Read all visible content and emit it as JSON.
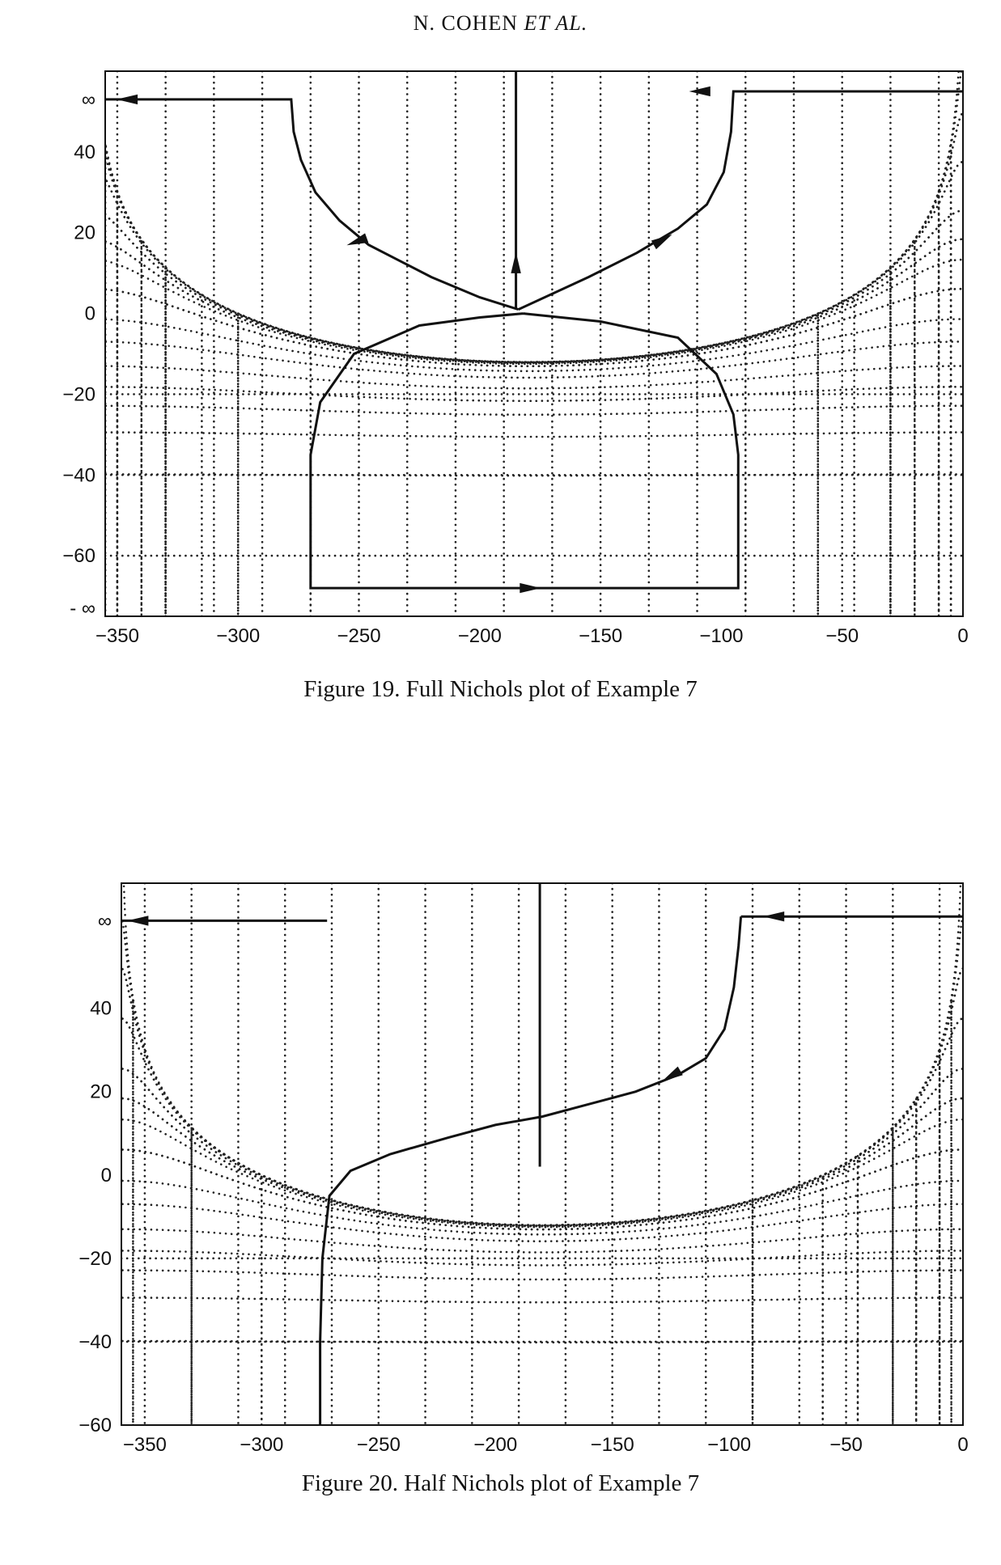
{
  "page_header": {
    "name": "N. COHEN",
    "etal": "ET AL."
  },
  "chart_data": [
    {
      "type": "line",
      "caption": "Figure 19.  Full Nichols plot of Example 7",
      "x_ticks": [
        "−350",
        "−300",
        "−250",
        "−200",
        "−150",
        "−100",
        "−50",
        "0"
      ],
      "y_ticks": [
        "∞",
        "40",
        "20",
        "0",
        "−20",
        "−40",
        "−60",
        "- ∞"
      ],
      "xlim": [
        -355,
        0
      ],
      "ylim": [
        -75,
        60
      ],
      "grid": "Nichols chart (dotted M and N contours)",
      "curve": {
        "upper_left": [
          [
            -355,
            53
          ],
          [
            -278,
            53
          ],
          [
            -277,
            45
          ],
          [
            -274,
            38
          ],
          [
            -268,
            30
          ],
          [
            -258,
            23
          ],
          [
            -246,
            17
          ],
          [
            -233,
            13
          ],
          [
            -220,
            9
          ],
          [
            -200,
            4
          ],
          [
            -184,
            1
          ]
        ],
        "upper_right": [
          [
            0,
            55
          ],
          [
            -95,
            55
          ],
          [
            -96,
            45
          ],
          [
            -99,
            35
          ],
          [
            -106,
            27
          ],
          [
            -118,
            21
          ],
          [
            -135,
            15
          ],
          [
            -155,
            9
          ],
          [
            -184,
            1
          ]
        ],
        "center_vertical": [
          [
            -185,
            60
          ],
          [
            -185,
            1
          ]
        ],
        "lower": [
          [
            -182,
            0
          ],
          [
            -150,
            -2
          ],
          [
            -118,
            -6
          ],
          [
            -102,
            -15
          ],
          [
            -95,
            -25
          ],
          [
            -93,
            -35
          ],
          [
            -93,
            -50
          ],
          [
            -93,
            -68
          ],
          [
            -180,
            -68
          ],
          [
            -270,
            -68
          ],
          [
            -270,
            -50
          ],
          [
            -270,
            -35
          ],
          [
            -266,
            -22
          ],
          [
            -252,
            -10
          ],
          [
            -225,
            -3
          ],
          [
            -200,
            -1
          ],
          [
            -182,
            0
          ]
        ]
      }
    },
    {
      "type": "line",
      "caption": "Figure 20.  Half Nichols plot of Example 7",
      "x_ticks": [
        "−350",
        "−300",
        "−250",
        "−200",
        "−150",
        "−100",
        "−50",
        "0"
      ],
      "y_ticks": [
        "∞",
        "40",
        "20",
        "0",
        "−20",
        "−40",
        "−60"
      ],
      "xlim": [
        -360,
        0
      ],
      "ylim": [
        -60,
        70
      ],
      "grid": "Nichols chart (dotted M and N contours)",
      "curve": {
        "top_left": [
          [
            -360,
            61
          ],
          [
            -272,
            61
          ]
        ],
        "main": [
          [
            -275,
            -60
          ],
          [
            -275,
            -40
          ],
          [
            -274,
            -20
          ],
          [
            -271,
            -5
          ],
          [
            -262,
            1
          ],
          [
            -245,
            5
          ],
          [
            -220,
            9
          ],
          [
            -200,
            12
          ],
          [
            -180,
            14
          ],
          [
            -160,
            17
          ],
          [
            -140,
            20
          ],
          [
            -122,
            24
          ],
          [
            -110,
            28
          ],
          [
            -102,
            35
          ],
          [
            -98,
            45
          ],
          [
            -96,
            55
          ],
          [
            -95,
            62
          ]
        ],
        "top_right": [
          [
            -95,
            62
          ],
          [
            0,
            62
          ]
        ],
        "center_vertical": [
          [
            -181,
            70
          ],
          [
            -181,
            2
          ]
        ]
      }
    }
  ]
}
